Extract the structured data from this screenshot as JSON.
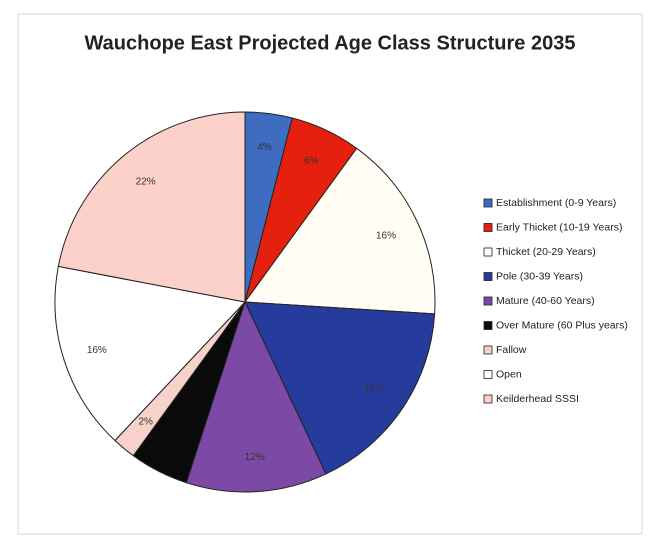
{
  "chart_data": {
    "type": "pie",
    "title": "Wauchope East Projected Age Class Structure 2035",
    "categories": [
      "Establishment (0-9 Years)",
      "Early Thicket (10-19 Years)",
      "Thicket (20-29 Years)",
      "Pole (30-39 Years)",
      "Mature (40-60 Years)",
      "Over Mature (60 Plus years)",
      "Fallow",
      "Open",
      "Keilderhead SSSI"
    ],
    "values": [
      4,
      6,
      16,
      17,
      12,
      5,
      2,
      16,
      22
    ],
    "value_labels": [
      "4%",
      "6%",
      "16%",
      "17%",
      "12%",
      null,
      "2%",
      "16%",
      "22%"
    ],
    "colors": [
      "#3d6cc0",
      "#e5200f",
      "#fffdf4",
      "#263c9c",
      "#7c4aa6",
      "#0a0a0a",
      "#f6d2ca",
      "#ffffff",
      "#fbd1c9"
    ]
  }
}
